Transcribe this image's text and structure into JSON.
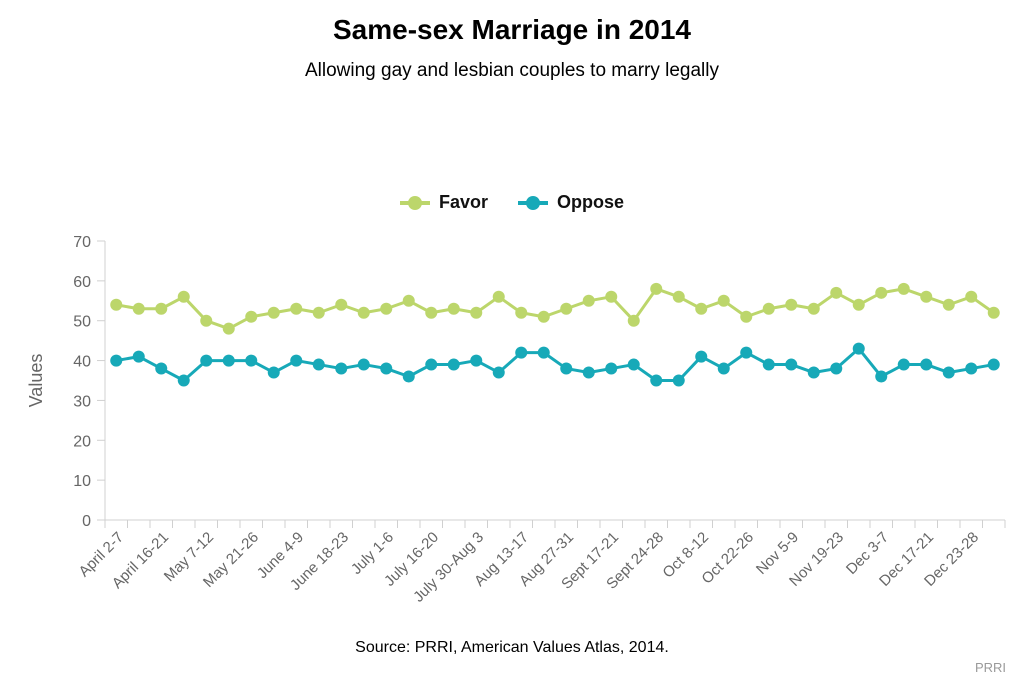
{
  "chart_data": {
    "type": "line",
    "title": "Same-sex Marriage in 2014",
    "subtitle": "Allowing gay and lesbian couples to marry legally",
    "ylabel": "Values",
    "ylim": [
      0,
      70
    ],
    "yticks": [
      0,
      10,
      20,
      30,
      40,
      50,
      60,
      70
    ],
    "grid": false,
    "legend_position": "top-center",
    "x_tick_labels": [
      "April 2-7",
      "April 16-21",
      "May 7-12",
      "May 21-26",
      "June 4-9",
      "June 18-23",
      "July 1-6",
      "July 16-20",
      "July 30-Aug 3",
      "Aug 13-17",
      "Aug 27-31",
      "Sept 17-21",
      "Sept 24-28",
      "Oct 8-12",
      "Oct 22-26",
      "Nov 5-9",
      "Nov 19-23",
      "Dec 3-7",
      "Dec 17-21",
      "Dec 23-28"
    ],
    "series": [
      {
        "name": "Favor",
        "color": "#bcd66b",
        "values": [
          54,
          53,
          53,
          56,
          50,
          48,
          51,
          52,
          53,
          52,
          54,
          52,
          53,
          55,
          52,
          53,
          52,
          56,
          52,
          51,
          53,
          55,
          56,
          50,
          58,
          56,
          53,
          55,
          51,
          53,
          54,
          53,
          57,
          54,
          57,
          58,
          56,
          54,
          56,
          52
        ]
      },
      {
        "name": "Oppose",
        "color": "#17a9b8",
        "values": [
          40,
          41,
          38,
          35,
          40,
          40,
          40,
          37,
          40,
          39,
          38,
          39,
          38,
          36,
          39,
          39,
          40,
          37,
          42,
          42,
          38,
          37,
          38,
          39,
          35,
          35,
          41,
          38,
          42,
          39,
          39,
          37,
          38,
          43,
          36,
          39,
          39,
          37,
          38,
          39
        ]
      }
    ]
  },
  "source": "Source: PRRI, American Values Atlas, 2014.",
  "credit": "PRRI"
}
